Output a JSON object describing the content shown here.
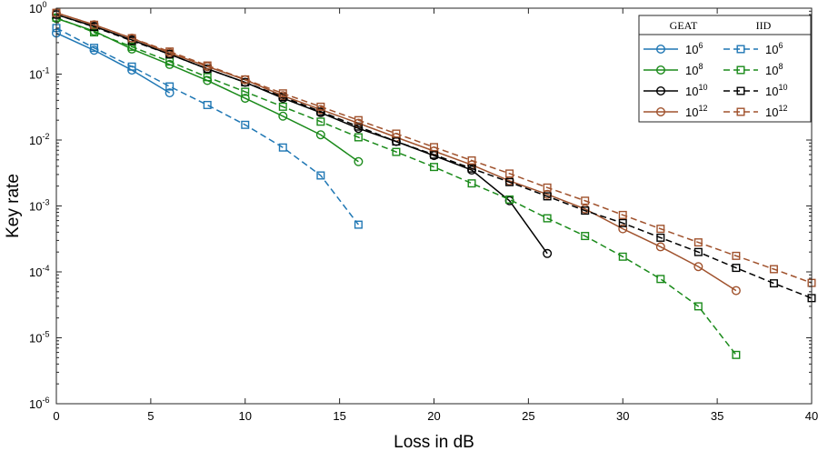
{
  "chart_data": {
    "type": "line",
    "xlabel": "Loss in dB",
    "ylabel": "Key rate",
    "xlim": [
      0,
      40
    ],
    "ylim_exponent": [
      -6,
      0
    ],
    "yscale": "log",
    "x_ticks": [
      0,
      5,
      10,
      15,
      20,
      25,
      30,
      35,
      40
    ],
    "y_tick_base": "10",
    "y_tick_exponents": [
      "0",
      "-1",
      "-2",
      "-3",
      "-4",
      "-5",
      "-6"
    ],
    "legend": {
      "position": "top-right",
      "group_headers": [
        "GEAT",
        "IID"
      ],
      "labels": [
        {
          "base": "10",
          "exp": "6"
        },
        {
          "base": "10",
          "exp": "8"
        },
        {
          "base": "10",
          "exp": "10"
        },
        {
          "base": "10",
          "exp": "12"
        }
      ]
    },
    "series": [
      {
        "name": "GEAT 10^6",
        "group": "GEAT",
        "color": "#1f77b4",
        "dash": "solid",
        "marker": "circle",
        "x": [
          0,
          2,
          4,
          6
        ],
        "y": [
          0.42,
          0.23,
          0.115,
          0.052
        ]
      },
      {
        "name": "GEAT 10^8",
        "group": "GEAT",
        "color": "#1a8a1a",
        "dash": "solid",
        "marker": "circle",
        "x": [
          0,
          2,
          4,
          6,
          8,
          10,
          12,
          14,
          16
        ],
        "y": [
          0.7,
          0.45,
          0.24,
          0.14,
          0.08,
          0.043,
          0.023,
          0.012,
          0.0047
        ]
      },
      {
        "name": "GEAT 10^10",
        "group": "GEAT",
        "color": "#000000",
        "dash": "solid",
        "marker": "circle",
        "x": [
          0,
          2,
          4,
          6,
          8,
          10,
          12,
          14,
          16,
          18,
          20,
          22,
          24,
          26
        ],
        "y": [
          0.8,
          0.53,
          0.33,
          0.2,
          0.12,
          0.075,
          0.043,
          0.026,
          0.015,
          0.0095,
          0.0058,
          0.0035,
          0.0012,
          0.00019
        ]
      },
      {
        "name": "GEAT 10^12",
        "group": "GEAT",
        "color": "#a0522d",
        "dash": "solid",
        "marker": "circle",
        "x": [
          0,
          2,
          4,
          6,
          8,
          10,
          12,
          14,
          16,
          18,
          20,
          22,
          24,
          26,
          28,
          30,
          32,
          34,
          36
        ],
        "y": [
          0.85,
          0.56,
          0.35,
          0.21,
          0.13,
          0.082,
          0.047,
          0.029,
          0.018,
          0.011,
          0.0068,
          0.0042,
          0.0024,
          0.0015,
          0.0009,
          0.00045,
          0.00024,
          0.00012,
          5.2e-05
        ]
      },
      {
        "name": "IID 10^6",
        "group": "IID",
        "color": "#1f77b4",
        "dash": "dashed",
        "marker": "square",
        "x": [
          0,
          2,
          4,
          6,
          8,
          10,
          12,
          14,
          16
        ],
        "y": [
          0.5,
          0.25,
          0.13,
          0.065,
          0.034,
          0.017,
          0.0077,
          0.0029,
          0.00052
        ]
      },
      {
        "name": "IID 10^8",
        "group": "IID",
        "color": "#1a8a1a",
        "dash": "dashed",
        "marker": "square",
        "x": [
          0,
          2,
          4,
          6,
          8,
          10,
          12,
          14,
          16,
          18,
          20,
          22,
          24,
          26,
          28,
          30,
          32,
          34,
          36
        ],
        "y": [
          0.72,
          0.43,
          0.26,
          0.155,
          0.09,
          0.054,
          0.032,
          0.019,
          0.011,
          0.0066,
          0.0039,
          0.0022,
          0.00125,
          0.00065,
          0.00035,
          0.00017,
          7.8e-05,
          3e-05,
          5.5e-06
        ]
      },
      {
        "name": "IID 10^10",
        "group": "IID",
        "color": "#000000",
        "dash": "dashed",
        "marker": "square",
        "x": [
          0,
          2,
          4,
          6,
          8,
          10,
          12,
          14,
          16,
          18,
          20,
          22,
          24,
          26,
          28,
          30,
          32,
          34,
          36,
          38,
          40
        ],
        "y": [
          0.8,
          0.52,
          0.32,
          0.2,
          0.12,
          0.075,
          0.045,
          0.027,
          0.016,
          0.0095,
          0.006,
          0.0037,
          0.0023,
          0.0014,
          0.00085,
          0.00055,
          0.00033,
          0.0002,
          0.000115,
          6.7e-05,
          4e-05
        ]
      },
      {
        "name": "IID 10^12",
        "group": "IID",
        "color": "#a0522d",
        "dash": "dashed",
        "marker": "square",
        "x": [
          0,
          2,
          4,
          6,
          8,
          10,
          12,
          14,
          16,
          18,
          20,
          22,
          24,
          26,
          28,
          30,
          32,
          34,
          36,
          38,
          40
        ],
        "y": [
          0.85,
          0.56,
          0.35,
          0.22,
          0.135,
          0.083,
          0.051,
          0.032,
          0.02,
          0.0125,
          0.0078,
          0.0049,
          0.0031,
          0.0019,
          0.0012,
          0.00073,
          0.00045,
          0.00028,
          0.000175,
          0.00011,
          6.8e-05
        ]
      }
    ]
  }
}
